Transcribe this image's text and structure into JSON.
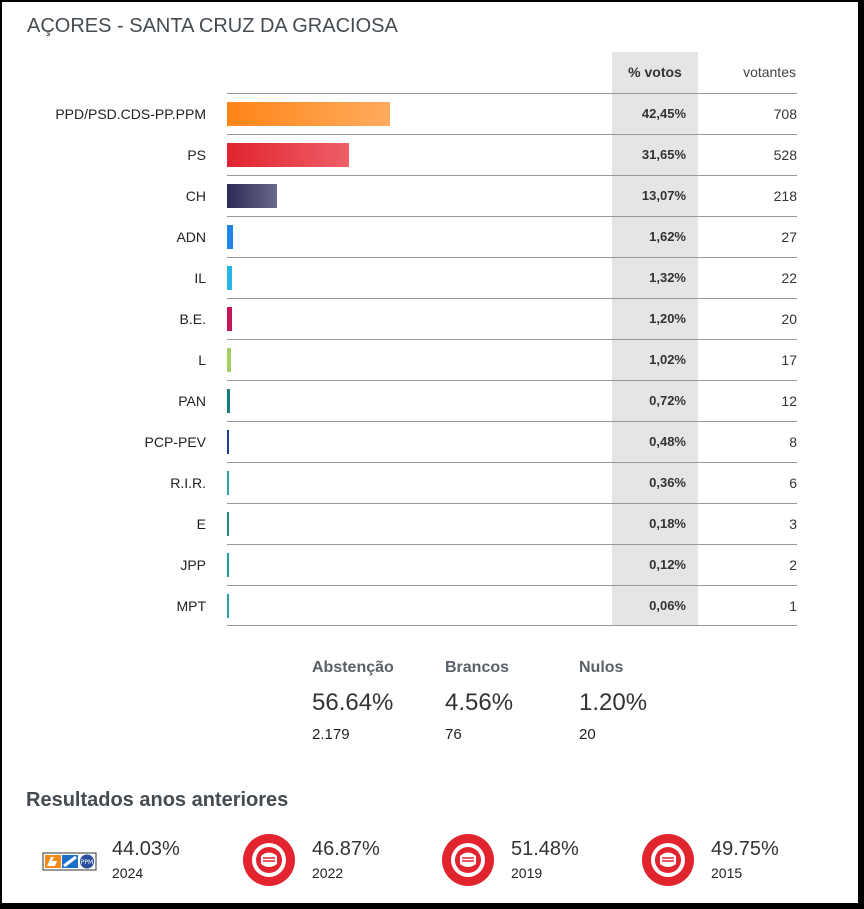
{
  "title": "AÇORES - SANTA CRUZ DA GRACIOSA",
  "chart_data": {
    "type": "bar",
    "orientation": "horizontal",
    "title": "AÇORES - SANTA CRUZ DA GRACIOSA",
    "columns": {
      "pct": "% votos",
      "votes": "votantes"
    },
    "categories": [
      "PPD/PSD.CDS-PP.PPM",
      "PS",
      "CH",
      "ADN",
      "IL",
      "B.E.",
      "L",
      "PAN",
      "PCP-PEV",
      "R.I.R.",
      "E",
      "JPP",
      "MPT"
    ],
    "values": [
      42.45,
      31.65,
      13.07,
      1.62,
      1.32,
      1.2,
      1.02,
      0.72,
      0.48,
      0.36,
      0.18,
      0.12,
      0.06
    ],
    "pct_labels": [
      "42,45%",
      "31,65%",
      "13,07%",
      "1,62%",
      "1,32%",
      "1,20%",
      "1,02%",
      "0,72%",
      "0,48%",
      "0,36%",
      "0,18%",
      "0,12%",
      "0,06%"
    ],
    "votes": [
      "708",
      "528",
      "218",
      "27",
      "22",
      "20",
      "17",
      "12",
      "8",
      "6",
      "3",
      "2",
      "1"
    ],
    "colors": [
      [
        "#ff8518",
        "#ffab5e"
      ],
      [
        "#e1242f",
        "#ee5f68"
      ],
      [
        "#2b2a55",
        "#6a6a8c"
      ],
      [
        "#1f86e8",
        "#1f86e8"
      ],
      [
        "#25b5e8",
        "#25b5e8"
      ],
      [
        "#c2185b",
        "#c2185b"
      ],
      [
        "#a6cf63",
        "#a6cf63"
      ],
      [
        "#127a7e",
        "#127a7e"
      ],
      [
        "#1e3f8f",
        "#1e3f8f"
      ],
      [
        "#2aa3a3",
        "#2aa3a3"
      ],
      [
        "#1a8f84",
        "#1a8f84"
      ],
      [
        "#17a3a6",
        "#17a3a6"
      ],
      [
        "#2aa3a3",
        "#2aa3a3"
      ]
    ],
    "xlim": [
      0,
      100
    ]
  },
  "stats": [
    {
      "label": "Abstenção",
      "pct": "56.64%",
      "count": "2.179"
    },
    {
      "label": "Brancos",
      "pct": "4.56%",
      "count": "76"
    },
    {
      "label": "Nulos",
      "pct": "1.20%",
      "count": "20"
    }
  ],
  "previous": {
    "title": "Resultados anos anteriores",
    "items": [
      {
        "logo": "ad-coalition-logo",
        "pct": "44.03%",
        "year": "2024"
      },
      {
        "logo": "ps-fist-logo",
        "pct": "46.87%",
        "year": "2022"
      },
      {
        "logo": "ps-fist-logo",
        "pct": "51.48%",
        "year": "2019"
      },
      {
        "logo": "ps-fist-logo",
        "pct": "49.75%",
        "year": "2015"
      }
    ]
  }
}
